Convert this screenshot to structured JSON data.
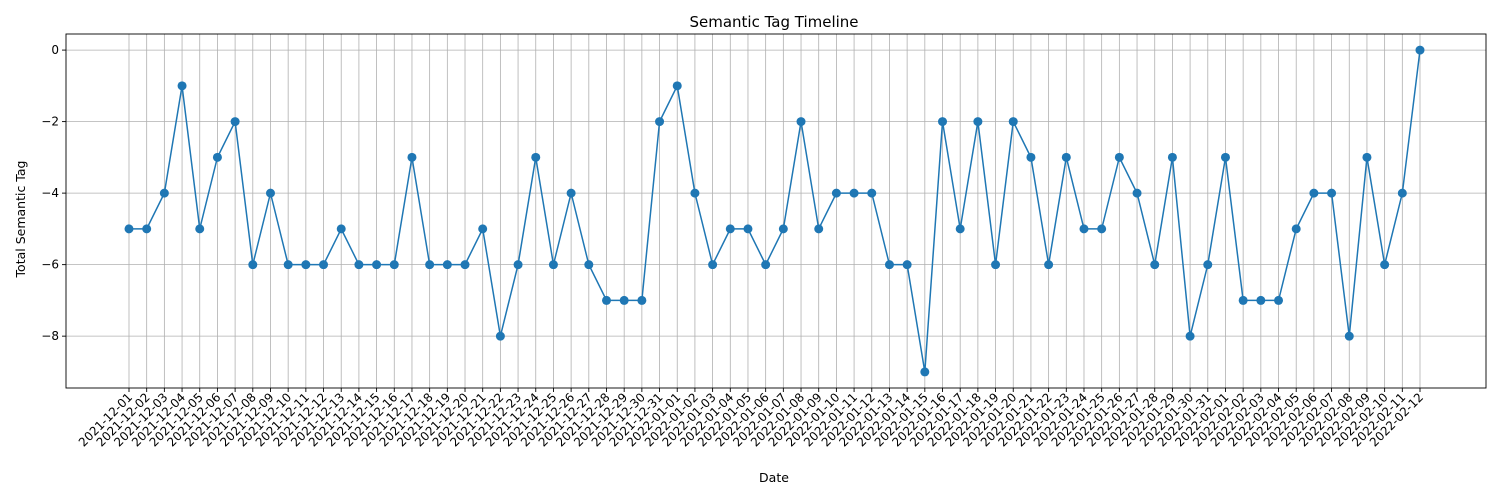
{
  "chart_data": {
    "type": "line",
    "title": "Semantic Tag Timeline",
    "xlabel": "Date",
    "ylabel": "Total Semantic Tag",
    "ylim": [
      -9.45,
      0.45
    ],
    "yticks": [
      0,
      -2,
      -4,
      -6,
      -8
    ],
    "grid": true,
    "legend": "none",
    "marker": "circle",
    "color": "#1f77b4",
    "x": [
      "2021-12-01",
      "2021-12-02",
      "2021-12-03",
      "2021-12-04",
      "2021-12-05",
      "2021-12-06",
      "2021-12-07",
      "2021-12-08",
      "2021-12-09",
      "2021-12-10",
      "2021-12-11",
      "2021-12-12",
      "2021-12-13",
      "2021-12-14",
      "2021-12-15",
      "2021-12-16",
      "2021-12-17",
      "2021-12-18",
      "2021-12-19",
      "2021-12-20",
      "2021-12-21",
      "2021-12-22",
      "2021-12-23",
      "2021-12-24",
      "2021-12-25",
      "2021-12-26",
      "2021-12-27",
      "2021-12-28",
      "2021-12-29",
      "2021-12-30",
      "2021-12-31",
      "2022-01-01",
      "2022-01-02",
      "2022-01-03",
      "2022-01-04",
      "2022-01-05",
      "2022-01-06",
      "2022-01-07",
      "2022-01-08",
      "2022-01-09",
      "2022-01-10",
      "2022-01-11",
      "2022-01-12",
      "2022-01-13",
      "2022-01-14",
      "2022-01-15",
      "2022-01-16",
      "2022-01-17",
      "2022-01-18",
      "2022-01-19",
      "2022-01-20",
      "2022-01-21",
      "2022-01-22",
      "2022-01-23",
      "2022-01-24",
      "2022-01-25",
      "2022-01-26",
      "2022-01-27",
      "2022-01-28",
      "2022-01-29",
      "2022-01-30",
      "2022-01-31",
      "2022-02-01",
      "2022-02-02",
      "2022-02-03",
      "2022-02-04",
      "2022-02-05",
      "2022-02-06",
      "2022-02-07",
      "2022-02-08",
      "2022-02-09",
      "2022-02-10",
      "2022-02-11",
      "2022-02-12"
    ],
    "values": [
      -5,
      -5,
      -4,
      -1,
      -5,
      -3,
      -2,
      -6,
      -4,
      -6,
      -6,
      -6,
      -5,
      -6,
      -6,
      -6,
      -3,
      -6,
      -6,
      -6,
      -5,
      -8,
      -6,
      -3,
      -6,
      -4,
      -6,
      -7,
      -7,
      -7,
      -2,
      -1,
      -4,
      -6,
      -5,
      -5,
      -6,
      -5,
      -2,
      -5,
      -4,
      -4,
      -4,
      -6,
      -6,
      -9,
      -2,
      -5,
      -2,
      -6,
      -2,
      -3,
      -6,
      -3,
      -5,
      -5,
      -3,
      -4,
      -6,
      -3,
      -8,
      -6,
      -3,
      -7,
      -7,
      -7,
      -5,
      -4,
      -4,
      -8,
      -3,
      -6,
      -4,
      0
    ]
  }
}
